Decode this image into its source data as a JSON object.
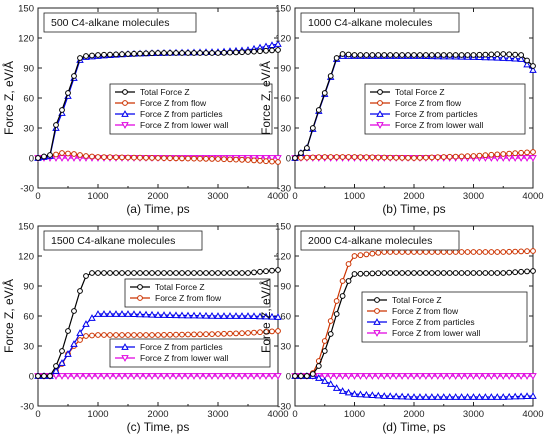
{
  "chart_data": [
    {
      "type": "line",
      "panel": "a",
      "title": "500 C4-alkane molecules",
      "xlabel": "(a) Time, ps",
      "ylabel": "Force Z, eV/Å",
      "xlim": [
        0,
        4000
      ],
      "ylim": [
        -30,
        150
      ],
      "xticks": [
        "0",
        "1000",
        "2000",
        "3000",
        "4000"
      ],
      "yticks": [
        "-30",
        "0",
        "30",
        "60",
        "90",
        "120",
        "150"
      ],
      "legend_position": "center-right",
      "series": [
        {
          "name": "Total Force Z",
          "color": "#000000",
          "marker": "circle",
          "points": [
            [
              0,
              0
            ],
            [
              200,
              3
            ],
            [
              300,
              33
            ],
            [
              400,
              48
            ],
            [
              500,
              65
            ],
            [
              600,
              82
            ],
            [
              700,
              100
            ],
            [
              800,
              102
            ],
            [
              1000,
              103
            ],
            [
              1500,
              104
            ],
            [
              2000,
              105
            ],
            [
              3000,
              105
            ],
            [
              3500,
              106
            ],
            [
              4000,
              108
            ]
          ]
        },
        {
          "name": "Force Z from flow",
          "color": "#cc3300",
          "marker": "circle",
          "points": [
            [
              0,
              0
            ],
            [
              200,
              2
            ],
            [
              400,
              5
            ],
            [
              600,
              4
            ],
            [
              800,
              2
            ],
            [
              1000,
              1
            ],
            [
              2000,
              0
            ],
            [
              3000,
              -1
            ],
            [
              3500,
              -2
            ],
            [
              4000,
              -4
            ]
          ]
        },
        {
          "name": "Force Z from particles",
          "color": "#0000ee",
          "marker": "triangle",
          "points": [
            [
              0,
              0
            ],
            [
              200,
              2
            ],
            [
              300,
              30
            ],
            [
              400,
              45
            ],
            [
              500,
              62
            ],
            [
              600,
              80
            ],
            [
              700,
              98
            ],
            [
              800,
              101
            ],
            [
              1000,
              102
            ],
            [
              1500,
              104
            ],
            [
              2000,
              105
            ],
            [
              3000,
              106
            ],
            [
              3500,
              108
            ],
            [
              4000,
              114
            ]
          ]
        },
        {
          "name": "Force Z from lower wall",
          "color": "#e000e0",
          "marker": "triangle-down",
          "points": [
            [
              0,
              0
            ],
            [
              1000,
              0
            ],
            [
              2000,
              0
            ],
            [
              3000,
              0
            ],
            [
              4000,
              0
            ]
          ]
        }
      ]
    },
    {
      "type": "line",
      "panel": "b",
      "title": "1000 C4-alkane molecules",
      "xlabel": "(b) Time, ps",
      "ylabel": "Force Z, eV/Å",
      "xlim": [
        0,
        4000
      ],
      "ylim": [
        -30,
        150
      ],
      "xticks": [
        "0",
        "1000",
        "2000",
        "3000",
        "4000"
      ],
      "yticks": [
        "-30",
        "0",
        "30",
        "60",
        "90",
        "120",
        "150"
      ],
      "legend_position": "center-right",
      "series": [
        {
          "name": "Total Force Z",
          "color": "#000000",
          "marker": "circle",
          "points": [
            [
              0,
              0
            ],
            [
              200,
              10
            ],
            [
              300,
              30
            ],
            [
              400,
              48
            ],
            [
              500,
              65
            ],
            [
              600,
              82
            ],
            [
              700,
              100
            ],
            [
              800,
              104
            ],
            [
              1000,
              103
            ],
            [
              2000,
              103
            ],
            [
              3000,
              103
            ],
            [
              3500,
              104
            ],
            [
              3800,
              103
            ],
            [
              4000,
              92
            ]
          ]
        },
        {
          "name": "Force Z from flow",
          "color": "#cc3300",
          "marker": "circle",
          "points": [
            [
              0,
              0
            ],
            [
              500,
              1
            ],
            [
              1000,
              1
            ],
            [
              2000,
              0
            ],
            [
              3000,
              2
            ],
            [
              3500,
              4
            ],
            [
              4000,
              6
            ]
          ]
        },
        {
          "name": "Force Z from particles",
          "color": "#0000ee",
          "marker": "triangle",
          "points": [
            [
              0,
              0
            ],
            [
              200,
              10
            ],
            [
              300,
              29
            ],
            [
              400,
              47
            ],
            [
              500,
              64
            ],
            [
              600,
              81
            ],
            [
              700,
              99
            ],
            [
              800,
              102
            ],
            [
              1000,
              102
            ],
            [
              2000,
              102
            ],
            [
              3000,
              101
            ],
            [
              3500,
              100
            ],
            [
              3800,
              99
            ],
            [
              4000,
              88
            ]
          ]
        },
        {
          "name": "Force Z from lower wall",
          "color": "#e000e0",
          "marker": "triangle-down",
          "points": [
            [
              0,
              0
            ],
            [
              1000,
              0
            ],
            [
              2000,
              0
            ],
            [
              3000,
              0
            ],
            [
              4000,
              0
            ]
          ]
        }
      ]
    },
    {
      "type": "line",
      "panel": "c",
      "title": "1500 C4-alkane molecules",
      "xlabel": "(c) Time, ps",
      "ylabel": "Force Z, eV/Å",
      "xlim": [
        0,
        4000
      ],
      "ylim": [
        -30,
        150
      ],
      "xticks": [
        "0",
        "1000",
        "2000",
        "3000",
        "4000"
      ],
      "yticks": [
        "-30",
        "0",
        "30",
        "60",
        "90",
        "120",
        "150"
      ],
      "legend_position": "split: top-right and lower-right",
      "series": [
        {
          "name": "Total Force Z",
          "color": "#000000",
          "marker": "circle",
          "points": [
            [
              0,
              0
            ],
            [
              200,
              0
            ],
            [
              300,
              10
            ],
            [
              400,
              25
            ],
            [
              500,
              45
            ],
            [
              600,
              65
            ],
            [
              700,
              85
            ],
            [
              800,
              100
            ],
            [
              900,
              103
            ],
            [
              1000,
              103
            ],
            [
              2000,
              103
            ],
            [
              3000,
              103
            ],
            [
              3500,
              103
            ],
            [
              4000,
              106
            ]
          ]
        },
        {
          "name": "Force Z from flow",
          "color": "#cc3300",
          "marker": "circle",
          "points": [
            [
              0,
              0
            ],
            [
              200,
              0
            ],
            [
              300,
              5
            ],
            [
              400,
              12
            ],
            [
              500,
              22
            ],
            [
              600,
              30
            ],
            [
              700,
              36
            ],
            [
              800,
              40
            ],
            [
              1000,
              41
            ],
            [
              2000,
              41
            ],
            [
              3000,
              42
            ],
            [
              3500,
              43
            ],
            [
              4000,
              45
            ]
          ]
        },
        {
          "name": "Force Z from particles",
          "color": "#0000ee",
          "marker": "triangle",
          "points": [
            [
              0,
              0
            ],
            [
              200,
              0
            ],
            [
              300,
              5
            ],
            [
              400,
              13
            ],
            [
              500,
              22
            ],
            [
              600,
              32
            ],
            [
              700,
              43
            ],
            [
              800,
              52
            ],
            [
              900,
              58
            ],
            [
              1000,
              62
            ],
            [
              1500,
              62
            ],
            [
              2000,
              61
            ],
            [
              3000,
              60
            ],
            [
              3500,
              60
            ],
            [
              4000,
              59
            ]
          ]
        },
        {
          "name": "Force Z from lower wall",
          "color": "#e000e0",
          "marker": "triangle-down",
          "points": [
            [
              0,
              0
            ],
            [
              1000,
              0
            ],
            [
              2000,
              0
            ],
            [
              3000,
              0
            ],
            [
              4000,
              0
            ]
          ]
        }
      ]
    },
    {
      "type": "line",
      "panel": "d",
      "title": "2000 C4-alkane molecules",
      "xlabel": "(d) Time, ps",
      "ylabel": "Force Z, eV/Å",
      "xlim": [
        0,
        4000
      ],
      "ylim": [
        -30,
        150
      ],
      "xticks": [
        "0",
        "1000",
        "2000",
        "3000",
        "4000"
      ],
      "yticks": [
        "-30",
        "0",
        "30",
        "60",
        "90",
        "120",
        "150"
      ],
      "legend_position": "lower-right",
      "series": [
        {
          "name": "Total Force Z",
          "color": "#000000",
          "marker": "circle",
          "points": [
            [
              0,
              0
            ],
            [
              200,
              0
            ],
            [
              300,
              2
            ],
            [
              400,
              10
            ],
            [
              500,
              25
            ],
            [
              600,
              42
            ],
            [
              700,
              62
            ],
            [
              800,
              80
            ],
            [
              900,
              95
            ],
            [
              1000,
              102
            ],
            [
              1500,
              103
            ],
            [
              2000,
              103
            ],
            [
              3000,
              103
            ],
            [
              3500,
              103
            ],
            [
              4000,
              105
            ]
          ]
        },
        {
          "name": "Force Z from flow",
          "color": "#cc3300",
          "marker": "circle",
          "points": [
            [
              0,
              0
            ],
            [
              200,
              0
            ],
            [
              300,
              3
            ],
            [
              400,
              15
            ],
            [
              500,
              35
            ],
            [
              600,
              55
            ],
            [
              700,
              75
            ],
            [
              800,
              95
            ],
            [
              900,
              112
            ],
            [
              1000,
              120
            ],
            [
              1500,
              124
            ],
            [
              2000,
              124
            ],
            [
              3000,
              124
            ],
            [
              3500,
              124
            ],
            [
              4000,
              125
            ]
          ]
        },
        {
          "name": "Force Z from particles",
          "color": "#0000ee",
          "marker": "triangle",
          "points": [
            [
              0,
              0
            ],
            [
              300,
              0
            ],
            [
              400,
              -2
            ],
            [
              500,
              -5
            ],
            [
              600,
              -8
            ],
            [
              700,
              -12
            ],
            [
              800,
              -15
            ],
            [
              1000,
              -18
            ],
            [
              1500,
              -20
            ],
            [
              2000,
              -21
            ],
            [
              3000,
              -21
            ],
            [
              3500,
              -21
            ],
            [
              4000,
              -20
            ]
          ]
        },
        {
          "name": "Force Z from lower wall",
          "color": "#e000e0",
          "marker": "triangle-down",
          "points": [
            [
              0,
              0
            ],
            [
              1000,
              0
            ],
            [
              2000,
              0
            ],
            [
              3000,
              0
            ],
            [
              4000,
              0
            ]
          ]
        }
      ]
    }
  ]
}
